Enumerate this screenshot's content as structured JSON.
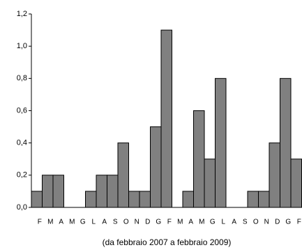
{
  "chart_data": {
    "type": "bar",
    "xlabel": "(da febbraio 2007 a febbraio 2009)",
    "categories": [
      "F",
      "M",
      "A",
      "M",
      "G",
      "L",
      "A",
      "S",
      "O",
      "N",
      "D",
      "G",
      "F",
      "M",
      "A",
      "M",
      "G",
      "L",
      "A",
      "S",
      "O",
      "N",
      "D",
      "G",
      "F"
    ],
    "values": [
      0.1,
      0.2,
      0.2,
      0,
      0,
      0.1,
      0.2,
      0.2,
      0.4,
      0.1,
      0.1,
      0.5,
      1.1,
      0,
      0.1,
      0.6,
      0.3,
      0.8,
      0,
      0,
      0.1,
      0.1,
      0.4,
      0.8,
      0.3
    ],
    "color": "#808080",
    "ylim": [
      0,
      1.2
    ],
    "yticks": [
      {
        "value": 0,
        "label": "0,0"
      },
      {
        "value": 0.2,
        "label": "0,2"
      },
      {
        "value": 0.4,
        "label": "0,4"
      },
      {
        "value": 0.6,
        "label": "0,6"
      },
      {
        "value": 0.8,
        "label": "0,8"
      },
      {
        "value": 1.0,
        "label": "1,0"
      },
      {
        "value": 1.2,
        "label": "1,2"
      }
    ],
    "grid": false
  }
}
